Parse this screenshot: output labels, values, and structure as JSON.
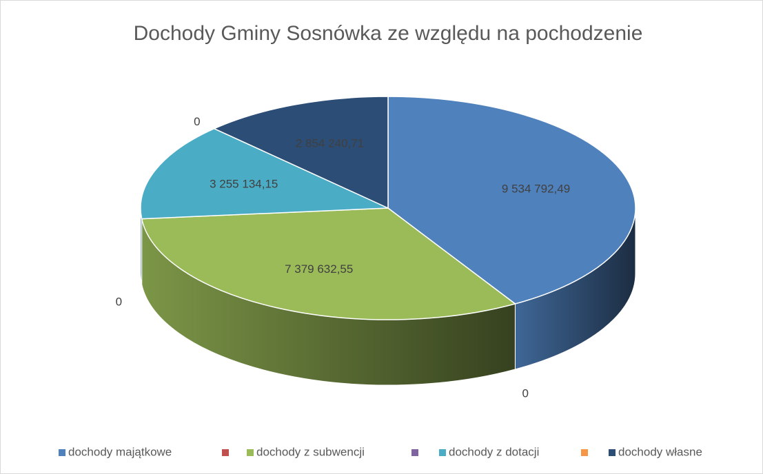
{
  "chart_data": {
    "type": "pie3d",
    "title": "Dochody Gminy Sosnówka ze względu na pochodzenie",
    "categories": [
      "dochody majątkowe",
      null,
      "dochody z subwencji",
      null,
      "dochody z dotacji",
      null,
      "dochody własne"
    ],
    "values": [
      9534792.49,
      0,
      7379632.55,
      0,
      3255134.15,
      0,
      2854240.71
    ],
    "value_labels": [
      "9 534 792,49",
      "0",
      "7 379 632,55",
      "0",
      "3 255 134,15",
      "0",
      "2 854 240,71"
    ],
    "colors": [
      "#4f81bd",
      "#c0504d",
      "#9bbb59",
      "#8064a2",
      "#4bacc6",
      "#f79646",
      "#2c4d75"
    ],
    "legend": "bottom"
  }
}
